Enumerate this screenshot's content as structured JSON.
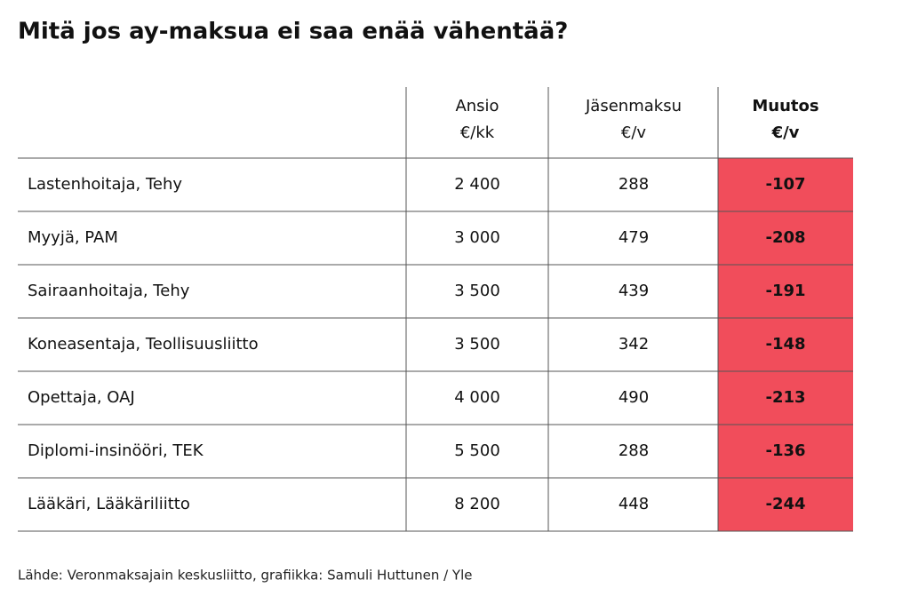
{
  "title": "Mitä jos ay-maksua ei saa enää vähentää?",
  "table": {
    "header": [
      [
        "",
        ""
      ],
      [
        "Ansio",
        "€/kk"
      ],
      [
        "Jäsenmaksu",
        "€/v"
      ],
      [
        "Muutos",
        "€/v"
      ]
    ],
    "rows": [
      [
        "Lastenhoitaja, Tehy",
        "2 400",
        "288",
        "-107"
      ],
      [
        "Myyjä, PAM",
        "3 000",
        "479",
        "-208"
      ],
      [
        "Sairaanhoitaja, Tehy",
        "3 500",
        "439",
        "-191"
      ],
      [
        "Koneasentaja, Teollisuusliitto",
        "3 500",
        "342",
        "-148"
      ],
      [
        "Opettaja, OAJ",
        "4 000",
        "490",
        "-213"
      ],
      [
        "Diplomi-insinööri, TEK",
        "5 500",
        "288",
        "-136"
      ],
      [
        "Lääkäri, Lääkäriliitto",
        "8 200",
        "448",
        "-244"
      ]
    ]
  },
  "source": "Lähde: Veronmaksajain keskusliitto, grafiikka: Samuli Huttunen / Yle"
}
